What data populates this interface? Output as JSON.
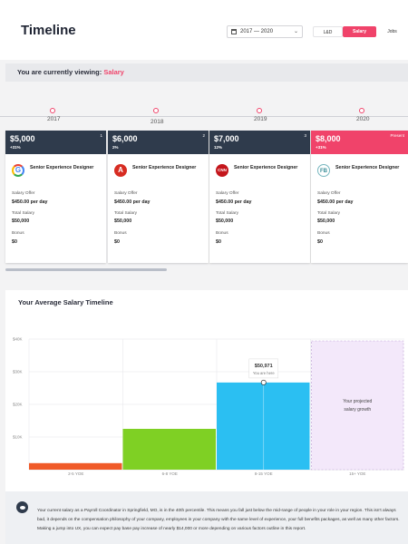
{
  "header": {
    "title": "Timeline",
    "year_range": "2017 — 2020",
    "tabs": [
      {
        "label": "L&D",
        "active": false
      },
      {
        "label": "Salary",
        "active": true
      },
      {
        "label": "Jobs",
        "active": false
      }
    ]
  },
  "viewing": {
    "prefix": "You are currently viewing:",
    "value": "Salary"
  },
  "timeline": {
    "years": [
      "2017",
      "2018",
      "2019",
      "2020"
    ]
  },
  "cards": [
    {
      "amount": "$5,000",
      "change": "+31%",
      "number": "1",
      "logo": "google-logo-icon",
      "role": "Senior Experience Designer",
      "salary_offer_label": "Salary Offer",
      "salary_offer": "$450.00 per day",
      "total_salary_label": "Total Salary",
      "total_salary": "$50,000",
      "bonus_label": "Bonus",
      "bonus": "$0"
    },
    {
      "amount": "$6,000",
      "change": "2%",
      "number": "2",
      "logo": "adobe-logo-icon",
      "role": "Senior Experience Designer",
      "salary_offer_label": "Salary Offer",
      "salary_offer": "$450.00 per day",
      "total_salary_label": "Total Salary",
      "total_salary": "$50,000",
      "bonus_label": "Bonus",
      "bonus": "$0"
    },
    {
      "amount": "$7,000",
      "change": "12%",
      "number": "3",
      "logo": "cnn-logo-icon",
      "role": "Senior Experience Designer",
      "salary_offer_label": "Salary Offer",
      "salary_offer": "$450.00 per day",
      "total_salary_label": "Total Salary",
      "total_salary": "$50,000",
      "bonus_label": "Bonus",
      "bonus": "$0"
    },
    {
      "amount": "$8,000",
      "change": "+31%",
      "number": "Present",
      "logo": "fb-logo-icon",
      "role": "Senior Experience Designer",
      "salary_offer_label": "Salary Offer",
      "salary_offer": "$450.00 per day",
      "total_salary_label": "Total Salary",
      "total_salary": "$50,000",
      "bonus_label": "Bonus",
      "bonus": "$0"
    }
  ],
  "panel": {
    "title": "Your Average Salary Timeline"
  },
  "chart_data": {
    "type": "bar",
    "categories": [
      "2-5 YOE",
      "6-8 YOE",
      "8-15 YOE",
      "15+ YOE"
    ],
    "values": [
      2000,
      12500,
      26700,
      null
    ],
    "colors": [
      "#f05a28",
      "#7fd024",
      "#2bbff2",
      "#f3e8fa"
    ],
    "ylim": [
      0,
      40000
    ],
    "yticks": [
      "$10K",
      "$20K",
      "$30K",
      "$40K"
    ],
    "tooltip": {
      "value": "$50,971",
      "label": "You are here"
    },
    "projection_label": "Your projected salary growth",
    "grid": true
  },
  "info": {
    "text": "Your current salary as a Payroll Coordinator in Springfield, MO, is in the 40th percentile. This means you fall just below the mid-range of people in your role in your region. This isn't always bad, it depends on the compensation philosophy of your company, employees in your company with the same level of experience, your full benefits packages, as well as many other factors. Making a jump into UX, you can expect pay base pay increase of nearly $14,000 or more depending on various factors outline in this report."
  }
}
